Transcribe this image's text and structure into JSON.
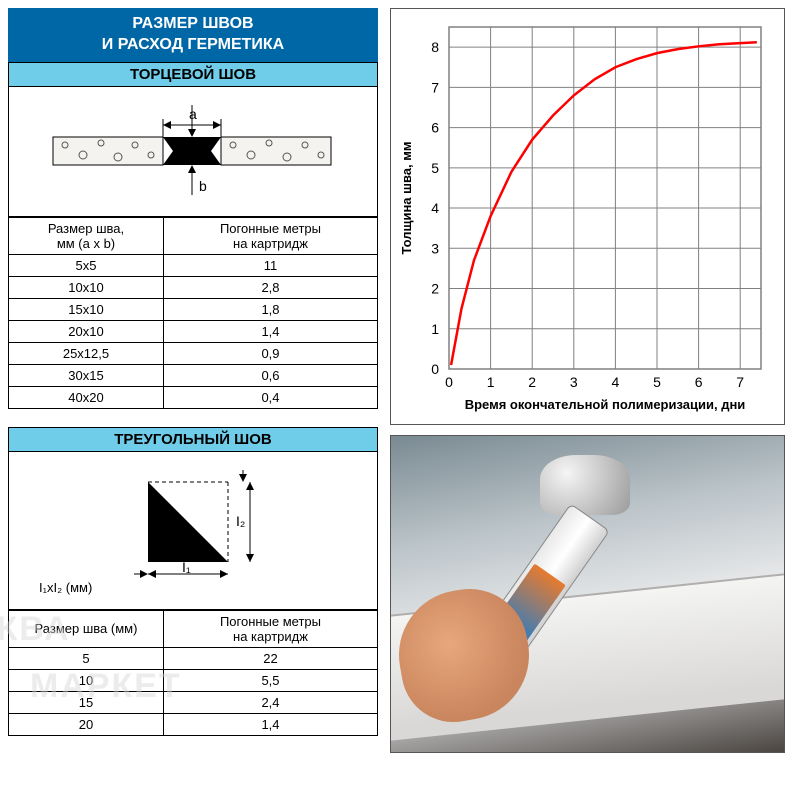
{
  "colors": {
    "header_bg": "#0067a6",
    "sub_bg": "#6fcde9",
    "border": "#000000",
    "chart_border": "#555555",
    "grid": "#808080",
    "curve": "#ff0000",
    "axis_text": "#000000"
  },
  "headers": {
    "main_line1": "РАЗМЕР ШВОВ",
    "main_line2": "И РАСХОД ГЕРМЕТИКА",
    "section1": "ТОРЦЕВОЙ ШОВ",
    "section2": "ТРЕУГОЛЬНЫЙ ШОВ"
  },
  "table1": {
    "col1_header": "Размер шва,\nмм (a x b)",
    "col2_header": "Погонные метры\nна картридж",
    "rows": [
      {
        "size": "5x5",
        "meters": "11"
      },
      {
        "size": "10x10",
        "meters": "2,8"
      },
      {
        "size": "15x10",
        "meters": "1,8"
      },
      {
        "size": "20x10",
        "meters": "1,4"
      },
      {
        "size": "25x12,5",
        "meters": "0,9"
      },
      {
        "size": "30x15",
        "meters": "0,6"
      },
      {
        "size": "40x20",
        "meters": "0,4"
      }
    ]
  },
  "table2": {
    "caption": "I₁xI₂ (мм)",
    "col1_header": "Размер шва (мм)",
    "col2_header": "Погонные метры\nна картридж",
    "rows": [
      {
        "size": "5",
        "meters": "22"
      },
      {
        "size": "10",
        "meters": "5,5"
      },
      {
        "size": "15",
        "meters": "2,4"
      },
      {
        "size": "20",
        "meters": "1,4"
      }
    ]
  },
  "diagram1": {
    "label_a": "a",
    "label_b": "b"
  },
  "diagram2": {
    "label_1": "I₁",
    "label_2": "I₂"
  },
  "chart": {
    "type": "line",
    "xlabel": "Время окончательной полимеризации, дни",
    "ylabel": "Толщина шва, мм",
    "xlabel_fontsize": 13,
    "ylabel_fontsize": 13,
    "axis_fontweight": "bold",
    "xlim": [
      0,
      7.5
    ],
    "ylim": [
      0,
      8.5
    ],
    "xticks": [
      0,
      1,
      2,
      3,
      4,
      5,
      6,
      7
    ],
    "yticks": [
      0,
      1,
      2,
      3,
      4,
      5,
      6,
      7,
      8
    ],
    "grid_color": "#808080",
    "grid_width": 1,
    "background_color": "#ffffff",
    "curve_color": "#ff0000",
    "curve_width": 2.5,
    "points": [
      {
        "x": 0.05,
        "y": 0.1
      },
      {
        "x": 0.3,
        "y": 1.5
      },
      {
        "x": 0.6,
        "y": 2.7
      },
      {
        "x": 1.0,
        "y": 3.8
      },
      {
        "x": 1.5,
        "y": 4.9
      },
      {
        "x": 2.0,
        "y": 5.7
      },
      {
        "x": 2.5,
        "y": 6.3
      },
      {
        "x": 3.0,
        "y": 6.8
      },
      {
        "x": 3.5,
        "y": 7.2
      },
      {
        "x": 4.0,
        "y": 7.5
      },
      {
        "x": 4.5,
        "y": 7.7
      },
      {
        "x": 5.0,
        "y": 7.85
      },
      {
        "x": 5.5,
        "y": 7.95
      },
      {
        "x": 6.0,
        "y": 8.02
      },
      {
        "x": 6.5,
        "y": 8.07
      },
      {
        "x": 7.0,
        "y": 8.1
      },
      {
        "x": 7.4,
        "y": 8.12
      }
    ]
  },
  "watermark": {
    "line1": "АКВА",
    "line2": "МАРКЕТ"
  }
}
